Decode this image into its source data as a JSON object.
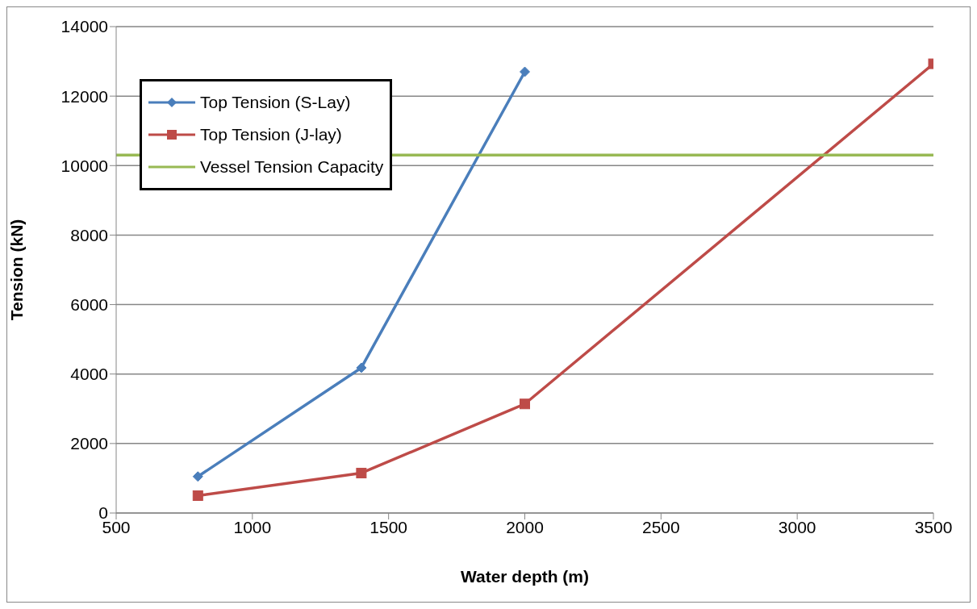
{
  "chart_data": {
    "type": "line",
    "xlabel": "Water depth (m)",
    "ylabel": "Tension (kN)",
    "xlim": [
      500,
      3500
    ],
    "xticks": [
      500,
      1000,
      1500,
      2000,
      2500,
      3000,
      3500
    ],
    "ylim": [
      0,
      14000
    ],
    "yticks": [
      0,
      2000,
      4000,
      6000,
      8000,
      10000,
      12000,
      14000
    ],
    "grid": "y",
    "legend": "top left",
    "series": [
      {
        "name": "Top Tension (S-Lay)",
        "color": "#4a7ebb",
        "marker": "diamond",
        "x": [
          800,
          1400,
          2000
        ],
        "values": [
          1050,
          4180,
          12700
        ]
      },
      {
        "name": "Top Tension (J-lay)",
        "color": "#be4b48",
        "marker": "square",
        "x": [
          800,
          1400,
          2000,
          3500
        ],
        "values": [
          500,
          1150,
          3140,
          12930
        ]
      },
      {
        "name": "Vessel Tension Capacity",
        "color": "#98b954",
        "marker": "none",
        "x": [
          500,
          3500
        ],
        "values": [
          10300,
          10300
        ]
      }
    ]
  }
}
